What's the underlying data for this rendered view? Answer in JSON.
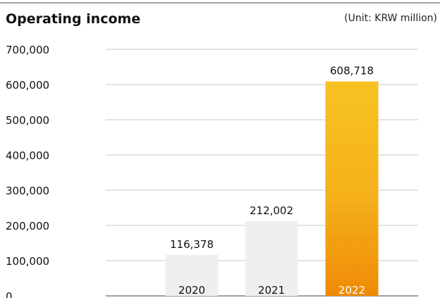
{
  "chart_data": {
    "type": "bar",
    "title": "Operating income",
    "unit": "(Unit: KRW million)",
    "categories": [
      "2020",
      "2021",
      "2022"
    ],
    "values": [
      116378,
      212002,
      608718
    ],
    "value_labels": [
      "116,378",
      "212,002",
      "608,718"
    ],
    "ylim": [
      0,
      700000
    ],
    "yticks": [
      0,
      100000,
      200000,
      300000,
      400000,
      500000,
      600000,
      700000
    ],
    "ytick_labels": [
      "0",
      "100,000",
      "200,000",
      "300,000",
      "400,000",
      "500,000",
      "600,000",
      "700,000"
    ],
    "grid": true,
    "colors": {
      "default_bar": "#efefef",
      "highlight_bar_top": "#f7c223",
      "highlight_bar_bottom": "#ef8a06",
      "highlight_label": "#ffffff",
      "gridline": "#c8c8c8"
    },
    "highlight_index": 2
  }
}
